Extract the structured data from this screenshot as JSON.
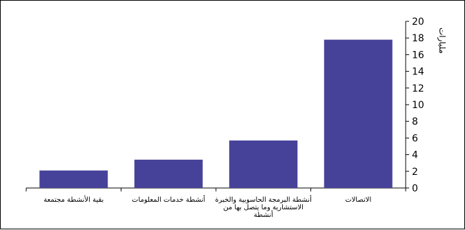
{
  "chart_data": {
    "type": "bar",
    "ylabel": "مليارات",
    "ylim": [
      0,
      20
    ],
    "ytick_step": 2,
    "y_axis_side": "right",
    "category_order": "right-to-left",
    "grid": false,
    "bar_color": "#46429a",
    "categories": [
      "الاتصالات",
      "أنشطة البرمجة الحاسوبية والخبرة الاستشارية وما يتصل بها من أنشطة",
      "أنشطة خدمات المعلومات",
      "بقية الأنشطة مجتمعة"
    ],
    "category_label_lines": [
      [
        "الاتصالات"
      ],
      [
        "أنشطة البرمجة الحاسوبية والخبرة",
        "الاستشارية وما يتصل بها من",
        "أنشطة"
      ],
      [
        "أنشطة خدمات المعلومات"
      ],
      [
        "بقية الأنشطة مجتمعة"
      ]
    ],
    "values": [
      17.8,
      5.7,
      3.4,
      2.1
    ]
  }
}
